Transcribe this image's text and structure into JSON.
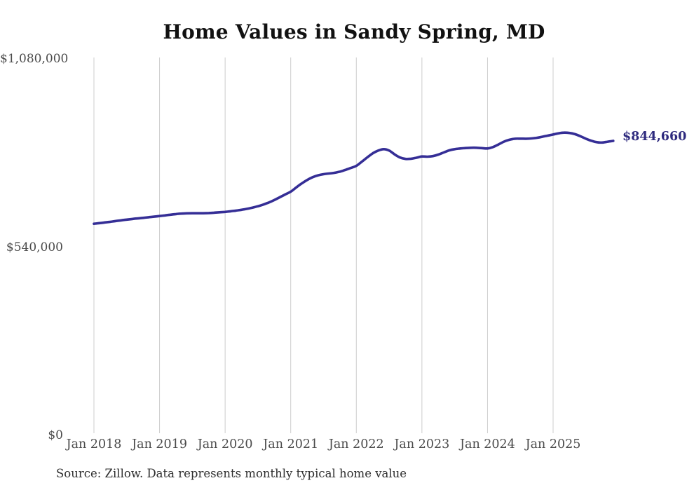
{
  "title": "Home Values in Sandy Spring, MD",
  "source_note": "Source: Zillow. Data represents monthly typical home value",
  "end_label": "$844,660",
  "colors": {
    "line": "#352e96",
    "end_label": "#2e2a7e",
    "gridline": "#cccccc",
    "axis_text": "#4a4a4a",
    "title_text": "#111111",
    "source_text": "#2e2e2e",
    "background": "#ffffff"
  },
  "y_axis": {
    "ticks": [
      {
        "label": "$1,080,000",
        "value": 1080000
      },
      {
        "label": "$540,000",
        "value": 540000
      },
      {
        "label": "$0",
        "value": 0
      }
    ]
  },
  "x_axis": {
    "ticks": [
      {
        "label": "Jan 2018",
        "month_index": 0
      },
      {
        "label": "Jan 2019",
        "month_index": 12
      },
      {
        "label": "Jan 2020",
        "month_index": 24
      },
      {
        "label": "Jan 2021",
        "month_index": 36
      },
      {
        "label": "Jan 2022",
        "month_index": 48
      },
      {
        "label": "Jan 2023",
        "month_index": 60
      },
      {
        "label": "Jan 2024",
        "month_index": 72
      },
      {
        "label": "Jan 2025",
        "month_index": 84
      }
    ]
  },
  "chart_data": {
    "type": "line",
    "title": "Home Values in Sandy Spring, MD",
    "series_name": "Monthly typical home value",
    "x_start": "2018-01",
    "x_step": "1 month",
    "x_end": "2025-12",
    "ylim": [
      0,
      1080000
    ],
    "xlabel": "",
    "ylabel": "",
    "grid": "vertical-only",
    "legend": "none",
    "final_value": 844660,
    "final_value_label": "$844,660",
    "values": [
      607000,
      608800,
      610700,
      612700,
      614800,
      616900,
      618900,
      620700,
      622300,
      623900,
      625600,
      627300,
      629000,
      631000,
      633000,
      634800,
      636200,
      637000,
      637200,
      637100,
      637200,
      637800,
      638800,
      639900,
      641000,
      642800,
      644800,
      647000,
      649800,
      653200,
      657200,
      662000,
      668000,
      675000,
      683000,
      691000,
      699000,
      711000,
      722500,
      732500,
      740500,
      746000,
      749200,
      751200,
      753200,
      756500,
      761500,
      767000,
      773000,
      785000,
      797500,
      809000,
      817000,
      821000,
      817000,
      806000,
      797000,
      793000,
      793500,
      796500,
      800000,
      799500,
      801000,
      805500,
      811500,
      817500,
      821000,
      823000,
      824200,
      825000,
      825000,
      824000,
      823000,
      827000,
      834500,
      842500,
      848000,
      851000,
      851200,
      851000,
      851800,
      853500,
      856500,
      859800,
      863000,
      866500,
      868500,
      867500,
      864000,
      858000,
      851000,
      845000,
      841000,
      840000,
      842500,
      844660
    ]
  }
}
